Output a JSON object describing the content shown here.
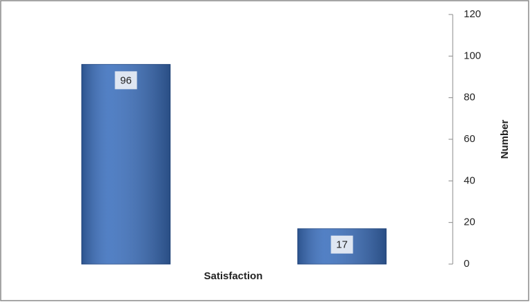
{
  "chart_data": {
    "type": "bar",
    "x_label": "Satisfaction",
    "y_label": "Number",
    "categories": [
      null,
      null
    ],
    "values": [
      96,
      17
    ],
    "color": "#3b6fbd",
    "ylim": [
      0,
      120
    ],
    "yticks": [
      0,
      20,
      40,
      60,
      80,
      100,
      120
    ],
    "y_axis_side": "right",
    "grid": false
  }
}
